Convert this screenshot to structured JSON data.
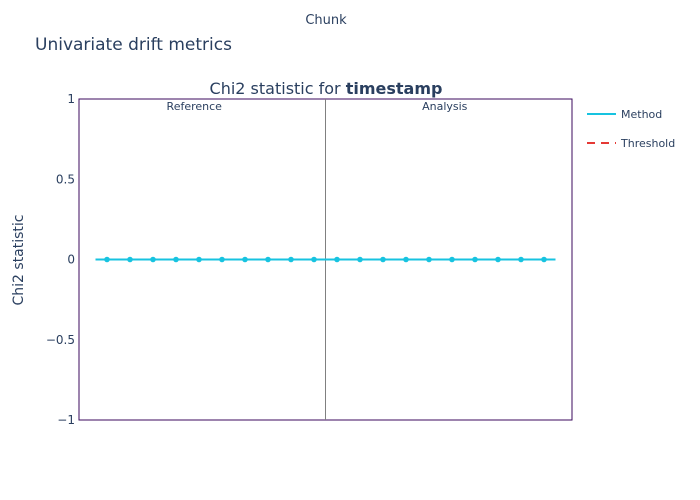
{
  "header": {
    "xaxis_title": "Chunk",
    "figure_title": "Univariate drift metrics"
  },
  "colors": {
    "method": "#17c3e0",
    "threshold": "#e53935",
    "frame": "#3b0a5e",
    "divider": "#808080",
    "text": "#2a3f5f"
  },
  "chart_data": {
    "type": "line",
    "title_prefix": "Chi2 statistic for ",
    "title_bold": "timestamp",
    "ylabel": "Chi2 statistic",
    "xlabel": "Chunk",
    "ylim": [
      -1,
      1
    ],
    "yticks": [
      {
        "value": 1,
        "label": "1"
      },
      {
        "value": 0.5,
        "label": "0.5"
      },
      {
        "value": 0,
        "label": "0"
      },
      {
        "value": -0.5,
        "label": "−0.5"
      },
      {
        "value": -1,
        "label": "−1"
      }
    ],
    "grid": false,
    "legend_placement": "top-right",
    "periods": [
      {
        "label": "Reference",
        "chunks": [
          0,
          1,
          2,
          3,
          4,
          5,
          6,
          7,
          8,
          9
        ]
      },
      {
        "label": "Analysis",
        "chunks": [
          10,
          11,
          12,
          13,
          14,
          15,
          16,
          17,
          18,
          19
        ]
      }
    ],
    "series": [
      {
        "name": "Method",
        "x": [
          0,
          1,
          2,
          3,
          4,
          5,
          6,
          7,
          8,
          9,
          10,
          11,
          12,
          13,
          14,
          15,
          16,
          17,
          18,
          19
        ],
        "values": [
          0,
          0,
          0,
          0,
          0,
          0,
          0,
          0,
          0,
          0,
          0,
          0,
          0,
          0,
          0,
          0,
          0,
          0,
          0,
          0
        ]
      }
    ],
    "legend": [
      {
        "name": "Method",
        "style": "solid"
      },
      {
        "name": "Threshold",
        "style": "dashed"
      }
    ]
  }
}
